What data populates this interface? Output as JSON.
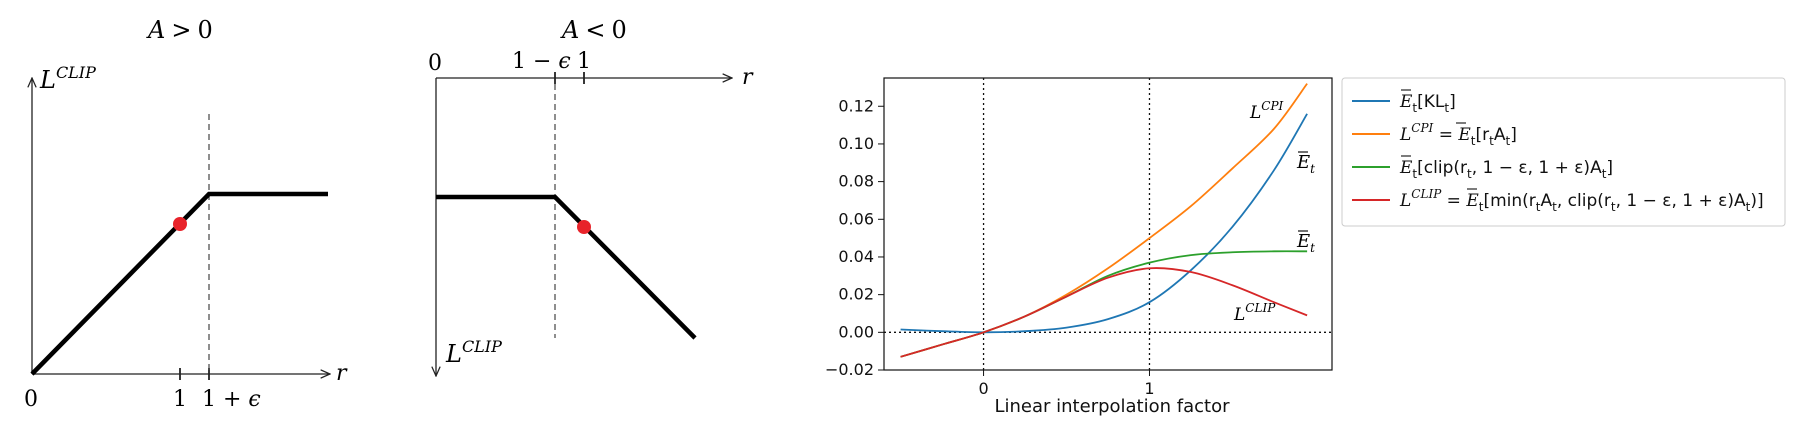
{
  "chart_data": [
    {
      "type": "line",
      "title": "A > 0",
      "ylabel": "L^CLIP",
      "xlabel": "r",
      "x_ticks": [
        "0",
        "1",
        "1 + ε"
      ],
      "series": [
        {
          "x": [
            0,
            1.2,
            2.2
          ],
          "y": [
            0,
            1.2,
            1.2
          ]
        }
      ],
      "marker": {
        "x": 1,
        "y": 1,
        "color": "#e8232a"
      },
      "dashed_x": 1.2
    },
    {
      "type": "line",
      "title": "A < 0",
      "ylabel": "L^CLIP",
      "xlabel": "r",
      "x_ticks": [
        "0",
        "1 − ε",
        "1"
      ],
      "series": [
        {
          "x": [
            0,
            0.8,
            1.75
          ],
          "y": [
            -0.8,
            -0.8,
            -1.75
          ]
        }
      ],
      "marker": {
        "x": 1,
        "y": -1,
        "color": "#e8232a"
      },
      "dashed_x": 0.8
    },
    {
      "type": "line",
      "xlabel": "Linear interpolation factor",
      "ylabel": "",
      "xlim": [
        -0.6,
        2.1
      ],
      "ylim": [
        -0.02,
        0.135
      ],
      "x_ticks": [
        0,
        1
      ],
      "y_ticks": [
        -0.02,
        0.0,
        0.02,
        0.04,
        0.06,
        0.08,
        0.1,
        0.12
      ],
      "y_tick_labels": [
        "−0.02",
        "0.00",
        "0.02",
        "0.04",
        "0.06",
        "0.08",
        "0.10",
        "0.12"
      ],
      "vlines": [
        0,
        1
      ],
      "hline": 0,
      "legend_position": "outside-right",
      "x": [
        -0.5,
        -0.25,
        0.0,
        0.25,
        0.5,
        0.75,
        1.0,
        1.25,
        1.5,
        1.75,
        1.95
      ],
      "series": [
        {
          "name": "Ê_t[KL_t]",
          "color": "#1f77b4",
          "values": [
            0.0015,
            0.0006,
            0.0,
            0.0006,
            0.0025,
            0.007,
            0.016,
            0.033,
            0.056,
            0.086,
            0.116
          ]
        },
        {
          "name": "L^CPI = Ê_t[r_t A_t]",
          "color": "#ff7f0e",
          "values": [
            -0.013,
            -0.0065,
            0.0,
            0.0085,
            0.02,
            0.034,
            0.05,
            0.067,
            0.087,
            0.108,
            0.132
          ]
        },
        {
          "name": "Ê_t[clip(r_t, 1 − ε, 1 + ε)A_t]",
          "color": "#2ca02c",
          "values": [
            -0.013,
            -0.0065,
            0.0,
            0.0085,
            0.019,
            0.03,
            0.037,
            0.041,
            0.0425,
            0.043,
            0.043
          ]
        },
        {
          "name": "L^CLIP = Ê_t[min(r_t A_t, clip(r_t, 1 − ε, 1 + ε)A_t)]",
          "color": "#d62728",
          "values": [
            -0.013,
            -0.0065,
            0.0,
            0.0085,
            0.019,
            0.029,
            0.034,
            0.032,
            0.025,
            0.016,
            0.009
          ]
        }
      ],
      "annotations": [
        {
          "text": "L^CPI",
          "x": 1.63,
          "y": 0.123
        },
        {
          "text": "Ê_t",
          "x": 1.93,
          "y": 0.095
        },
        {
          "text": "Ê_t",
          "x": 1.93,
          "y": 0.05
        },
        {
          "text": "L^CLIP",
          "x": 1.63,
          "y": 0.008
        }
      ]
    }
  ],
  "labels": {
    "left_title_a": "A",
    "left_title_op": ">",
    "left_title_b": "0",
    "mid_title_a": "A",
    "mid_title_op": "<",
    "mid_title_b": "0",
    "L": "L",
    "CLIP": "CLIP",
    "CPI": "CPI",
    "r": "r",
    "zero": "0",
    "one": "1",
    "one_plus": "1 + ",
    "one_minus": "1 − ",
    "eps": "ϵ",
    "E": "E",
    "t": "t",
    "xlabel3": "Linear interpolation factor",
    "leg1_rest": "[KL",
    "leg1_end": "]",
    "leg2_eq": " = ",
    "leg2_rest": "[r",
    "leg2_A": "A",
    "leg2_end": "]",
    "leg3_rest": "[clip(r",
    "leg3_mid": ", 1 − ε, 1 + ε)A",
    "leg3_end": "]",
    "leg4_rest": "[min(r",
    "leg4_mid": "A",
    "leg4_mid2": ", clip(r",
    "leg4_mid3": ", 1 − ε, 1 + ε)A",
    "leg4_end": ")]"
  }
}
